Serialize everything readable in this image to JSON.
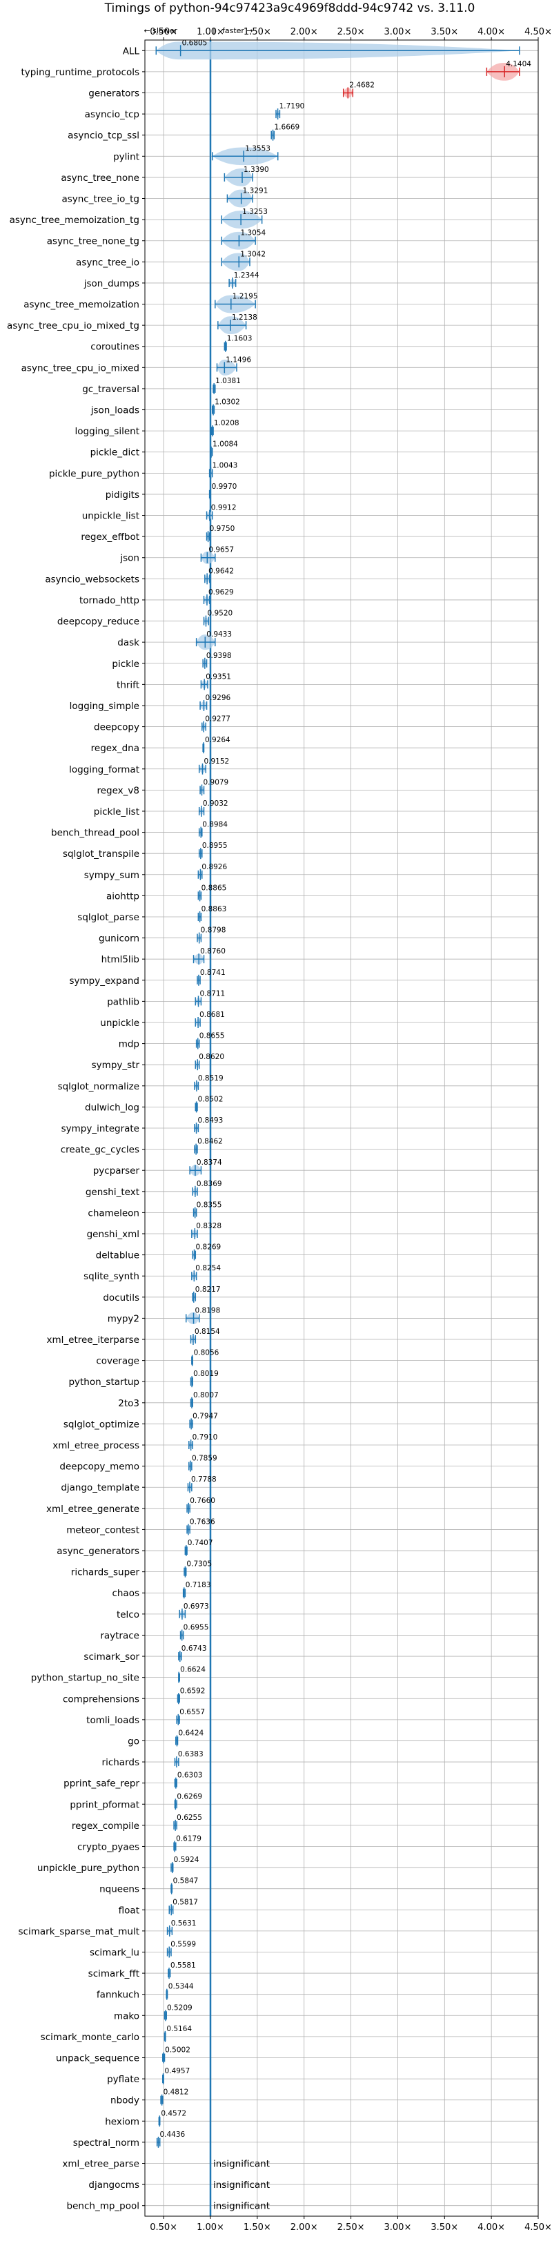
{
  "chart_data": {
    "type": "violin",
    "title": "Timings of python-94c97423a9c4969f8ddd-94c9742 vs. 3.11.0",
    "direction_labels": {
      "slower": "← slower",
      "separator": "|",
      "faster": "faster →"
    },
    "xlim": [
      0.3,
      4.5
    ],
    "xticks": [
      0.5,
      1.0,
      1.5,
      2.0,
      2.5,
      3.0,
      3.5,
      4.0,
      4.5
    ],
    "xtick_labels": [
      "0.50×",
      "1.00×",
      "1.50×",
      "2.00×",
      "2.50×",
      "3.00×",
      "3.50×",
      "4.00×",
      "4.50×"
    ],
    "grid": true,
    "reference_line": 1.0,
    "colors": {
      "faster": "#1f77b4",
      "slower": "#d62728",
      "faster_fill": "#aecde8",
      "slower_fill": "#f4a9a9",
      "grid": "#b0b0b0"
    },
    "insignificant_text": "insignificant",
    "benchmarks": [
      {
        "name": "ALL",
        "value": 0.6805,
        "label": "0.6805",
        "lo": 0.42,
        "hi": 4.3
      },
      {
        "name": "typing_runtime_protocols",
        "value": 4.1404,
        "label": "4.1404",
        "lo": 3.95,
        "hi": 4.3
      },
      {
        "name": "generators",
        "value": 2.4682,
        "label": "2.4682",
        "lo": 2.42,
        "hi": 2.52
      },
      {
        "name": "asyncio_tcp",
        "value": 1.719,
        "label": "1.7190",
        "lo": 1.7,
        "hi": 1.74
      },
      {
        "name": "asyncio_tcp_ssl",
        "value": 1.6669,
        "label": "1.6669",
        "lo": 1.65,
        "hi": 1.68
      },
      {
        "name": "pylint",
        "value": 1.3553,
        "label": "1.3553",
        "lo": 1.02,
        "hi": 1.72
      },
      {
        "name": "async_tree_none",
        "value": 1.339,
        "label": "1.3390",
        "lo": 1.15,
        "hi": 1.45
      },
      {
        "name": "async_tree_io_tg",
        "value": 1.3291,
        "label": "1.3291",
        "lo": 1.18,
        "hi": 1.45
      },
      {
        "name": "async_tree_memoization_tg",
        "value": 1.3253,
        "label": "1.3253",
        "lo": 1.12,
        "hi": 1.55
      },
      {
        "name": "async_tree_none_tg",
        "value": 1.3054,
        "label": "1.3054",
        "lo": 1.12,
        "hi": 1.48
      },
      {
        "name": "async_tree_io",
        "value": 1.3042,
        "label": "1.3042",
        "lo": 1.12,
        "hi": 1.42
      },
      {
        "name": "json_dumps",
        "value": 1.2344,
        "label": "1.2344",
        "lo": 1.2,
        "hi": 1.27
      },
      {
        "name": "async_tree_memoization",
        "value": 1.2195,
        "label": "1.2195",
        "lo": 1.05,
        "hi": 1.48
      },
      {
        "name": "async_tree_cpu_io_mixed_tg",
        "value": 1.2138,
        "label": "1.2138",
        "lo": 1.08,
        "hi": 1.38
      },
      {
        "name": "coroutines",
        "value": 1.1603,
        "label": "1.1603",
        "lo": 1.15,
        "hi": 1.17
      },
      {
        "name": "async_tree_cpu_io_mixed",
        "value": 1.1496,
        "label": "1.1496",
        "lo": 1.07,
        "hi": 1.28
      },
      {
        "name": "gc_traversal",
        "value": 1.0381,
        "label": "1.0381",
        "lo": 1.03,
        "hi": 1.05
      },
      {
        "name": "json_loads",
        "value": 1.0302,
        "label": "1.0302",
        "lo": 1.02,
        "hi": 1.04
      },
      {
        "name": "logging_silent",
        "value": 1.0208,
        "label": "1.0208",
        "lo": 1.01,
        "hi": 1.03
      },
      {
        "name": "pickle_dict",
        "value": 1.0084,
        "label": "1.0084",
        "lo": 1.0,
        "hi": 1.02
      },
      {
        "name": "pickle_pure_python",
        "value": 1.0043,
        "label": "1.0043",
        "lo": 0.99,
        "hi": 1.02
      },
      {
        "name": "pidigits",
        "value": 0.997,
        "label": "0.9970",
        "lo": 0.99,
        "hi": 1.0
      },
      {
        "name": "unpickle_list",
        "value": 0.9912,
        "label": "0.9912",
        "lo": 0.96,
        "hi": 1.02
      },
      {
        "name": "regex_effbot",
        "value": 0.975,
        "label": "0.9750",
        "lo": 0.96,
        "hi": 0.99
      },
      {
        "name": "json",
        "value": 0.9657,
        "label": "0.9657",
        "lo": 0.9,
        "hi": 1.05
      },
      {
        "name": "asyncio_websockets",
        "value": 0.9642,
        "label": "0.9642",
        "lo": 0.94,
        "hi": 0.99
      },
      {
        "name": "tornado_http",
        "value": 0.9629,
        "label": "0.9629",
        "lo": 0.93,
        "hi": 0.99
      },
      {
        "name": "deepcopy_reduce",
        "value": 0.952,
        "label": "0.9520",
        "lo": 0.93,
        "hi": 0.98
      },
      {
        "name": "dask",
        "value": 0.9433,
        "label": "0.9433",
        "lo": 0.85,
        "hi": 1.05
      },
      {
        "name": "pickle",
        "value": 0.9398,
        "label": "0.9398",
        "lo": 0.92,
        "hi": 0.96
      },
      {
        "name": "thrift",
        "value": 0.9351,
        "label": "0.9351",
        "lo": 0.9,
        "hi": 0.97
      },
      {
        "name": "logging_simple",
        "value": 0.9296,
        "label": "0.9296",
        "lo": 0.89,
        "hi": 0.96
      },
      {
        "name": "deepcopy",
        "value": 0.9277,
        "label": "0.9277",
        "lo": 0.91,
        "hi": 0.95
      },
      {
        "name": "regex_dna",
        "value": 0.9264,
        "label": "0.9264",
        "lo": 0.92,
        "hi": 0.93
      },
      {
        "name": "logging_format",
        "value": 0.9152,
        "label": "0.9152",
        "lo": 0.88,
        "hi": 0.95
      },
      {
        "name": "regex_v8",
        "value": 0.9079,
        "label": "0.9079",
        "lo": 0.89,
        "hi": 0.93
      },
      {
        "name": "pickle_list",
        "value": 0.9032,
        "label": "0.9032",
        "lo": 0.88,
        "hi": 0.93
      },
      {
        "name": "bench_thread_pool",
        "value": 0.8984,
        "label": "0.8984",
        "lo": 0.88,
        "hi": 0.91
      },
      {
        "name": "sqlglot_transpile",
        "value": 0.8955,
        "label": "0.8955",
        "lo": 0.88,
        "hi": 0.91
      },
      {
        "name": "sympy_sum",
        "value": 0.8926,
        "label": "0.8926",
        "lo": 0.87,
        "hi": 0.91
      },
      {
        "name": "aiohttp",
        "value": 0.8865,
        "label": "0.8865",
        "lo": 0.87,
        "hi": 0.9
      },
      {
        "name": "sqlglot_parse",
        "value": 0.8863,
        "label": "0.8863",
        "lo": 0.87,
        "hi": 0.9
      },
      {
        "name": "gunicorn",
        "value": 0.8798,
        "label": "0.8798",
        "lo": 0.86,
        "hi": 0.9
      },
      {
        "name": "html5lib",
        "value": 0.876,
        "label": "0.8760",
        "lo": 0.82,
        "hi": 0.93
      },
      {
        "name": "sympy_expand",
        "value": 0.8741,
        "label": "0.8741",
        "lo": 0.86,
        "hi": 0.89
      },
      {
        "name": "pathlib",
        "value": 0.8711,
        "label": "0.8711",
        "lo": 0.84,
        "hi": 0.9
      },
      {
        "name": "unpickle",
        "value": 0.8681,
        "label": "0.8681",
        "lo": 0.84,
        "hi": 0.89
      },
      {
        "name": "mdp",
        "value": 0.8655,
        "label": "0.8655",
        "lo": 0.85,
        "hi": 0.88
      },
      {
        "name": "sympy_str",
        "value": 0.862,
        "label": "0.8620",
        "lo": 0.84,
        "hi": 0.88
      },
      {
        "name": "sqlglot_normalize",
        "value": 0.8519,
        "label": "0.8519",
        "lo": 0.83,
        "hi": 0.87
      },
      {
        "name": "dulwich_log",
        "value": 0.8502,
        "label": "0.8502",
        "lo": 0.84,
        "hi": 0.86
      },
      {
        "name": "sympy_integrate",
        "value": 0.8493,
        "label": "0.8493",
        "lo": 0.83,
        "hi": 0.87
      },
      {
        "name": "create_gc_cycles",
        "value": 0.8462,
        "label": "0.8462",
        "lo": 0.83,
        "hi": 0.86
      },
      {
        "name": "pycparser",
        "value": 0.8374,
        "label": "0.8374",
        "lo": 0.78,
        "hi": 0.9
      },
      {
        "name": "genshi_text",
        "value": 0.8369,
        "label": "0.8369",
        "lo": 0.81,
        "hi": 0.86
      },
      {
        "name": "chameleon",
        "value": 0.8355,
        "label": "0.8355",
        "lo": 0.82,
        "hi": 0.85
      },
      {
        "name": "genshi_xml",
        "value": 0.8328,
        "label": "0.8328",
        "lo": 0.8,
        "hi": 0.86
      },
      {
        "name": "deltablue",
        "value": 0.8269,
        "label": "0.8269",
        "lo": 0.81,
        "hi": 0.84
      },
      {
        "name": "sqlite_synth",
        "value": 0.8254,
        "label": "0.8254",
        "lo": 0.8,
        "hi": 0.85
      },
      {
        "name": "docutils",
        "value": 0.8217,
        "label": "0.8217",
        "lo": 0.81,
        "hi": 0.84
      },
      {
        "name": "mypy2",
        "value": 0.8198,
        "label": "0.8198",
        "lo": 0.74,
        "hi": 0.88
      },
      {
        "name": "xml_etree_iterparse",
        "value": 0.8154,
        "label": "0.8154",
        "lo": 0.79,
        "hi": 0.84
      },
      {
        "name": "coverage",
        "value": 0.8056,
        "label": "0.8056",
        "lo": 0.8,
        "hi": 0.81
      },
      {
        "name": "python_startup",
        "value": 0.8019,
        "label": "0.8019",
        "lo": 0.79,
        "hi": 0.81
      },
      {
        "name": "2to3",
        "value": 0.8007,
        "label": "0.8007",
        "lo": 0.79,
        "hi": 0.81
      },
      {
        "name": "sqlglot_optimize",
        "value": 0.7947,
        "label": "0.7947",
        "lo": 0.78,
        "hi": 0.81
      },
      {
        "name": "xml_etree_process",
        "value": 0.791,
        "label": "0.7910",
        "lo": 0.77,
        "hi": 0.81
      },
      {
        "name": "deepcopy_memo",
        "value": 0.7859,
        "label": "0.7859",
        "lo": 0.77,
        "hi": 0.8
      },
      {
        "name": "django_template",
        "value": 0.7788,
        "label": "0.7788",
        "lo": 0.76,
        "hi": 0.8
      },
      {
        "name": "xml_etree_generate",
        "value": 0.766,
        "label": "0.7660",
        "lo": 0.75,
        "hi": 0.78
      },
      {
        "name": "meteor_contest",
        "value": 0.7636,
        "label": "0.7636",
        "lo": 0.75,
        "hi": 0.78
      },
      {
        "name": "async_generators",
        "value": 0.7407,
        "label": "0.7407",
        "lo": 0.73,
        "hi": 0.75
      },
      {
        "name": "richards_super",
        "value": 0.7305,
        "label": "0.7305",
        "lo": 0.72,
        "hi": 0.74
      },
      {
        "name": "chaos",
        "value": 0.7183,
        "label": "0.7183",
        "lo": 0.71,
        "hi": 0.73
      },
      {
        "name": "telco",
        "value": 0.6973,
        "label": "0.6973",
        "lo": 0.67,
        "hi": 0.73
      },
      {
        "name": "raytrace",
        "value": 0.6955,
        "label": "0.6955",
        "lo": 0.68,
        "hi": 0.71
      },
      {
        "name": "scimark_sor",
        "value": 0.6743,
        "label": "0.6743",
        "lo": 0.66,
        "hi": 0.69
      },
      {
        "name": "python_startup_no_site",
        "value": 0.6624,
        "label": "0.6624",
        "lo": 0.66,
        "hi": 0.67
      },
      {
        "name": "comprehensions",
        "value": 0.6592,
        "label": "0.6592",
        "lo": 0.65,
        "hi": 0.67
      },
      {
        "name": "tomli_loads",
        "value": 0.6557,
        "label": "0.6557",
        "lo": 0.64,
        "hi": 0.67
      },
      {
        "name": "go",
        "value": 0.6424,
        "label": "0.6424",
        "lo": 0.63,
        "hi": 0.65
      },
      {
        "name": "richards",
        "value": 0.6383,
        "label": "0.6383",
        "lo": 0.62,
        "hi": 0.66
      },
      {
        "name": "pprint_safe_repr",
        "value": 0.6303,
        "label": "0.6303",
        "lo": 0.62,
        "hi": 0.64
      },
      {
        "name": "pprint_pformat",
        "value": 0.6269,
        "label": "0.6269",
        "lo": 0.62,
        "hi": 0.64
      },
      {
        "name": "regex_compile",
        "value": 0.6255,
        "label": "0.6255",
        "lo": 0.61,
        "hi": 0.64
      },
      {
        "name": "crypto_pyaes",
        "value": 0.6179,
        "label": "0.6179",
        "lo": 0.61,
        "hi": 0.63
      },
      {
        "name": "unpickle_pure_python",
        "value": 0.5924,
        "label": "0.5924",
        "lo": 0.58,
        "hi": 0.6
      },
      {
        "name": "nqueens",
        "value": 0.5847,
        "label": "0.5847",
        "lo": 0.58,
        "hi": 0.59
      },
      {
        "name": "float",
        "value": 0.5817,
        "label": "0.5817",
        "lo": 0.56,
        "hi": 0.6
      },
      {
        "name": "scimark_sparse_mat_mult",
        "value": 0.5631,
        "label": "0.5631",
        "lo": 0.54,
        "hi": 0.59
      },
      {
        "name": "scimark_lu",
        "value": 0.5599,
        "label": "0.5599",
        "lo": 0.54,
        "hi": 0.58
      },
      {
        "name": "scimark_fft",
        "value": 0.5581,
        "label": "0.5581",
        "lo": 0.55,
        "hi": 0.57
      },
      {
        "name": "fannkuch",
        "value": 0.5344,
        "label": "0.5344",
        "lo": 0.53,
        "hi": 0.54
      },
      {
        "name": "mako",
        "value": 0.5209,
        "label": "0.5209",
        "lo": 0.51,
        "hi": 0.53
      },
      {
        "name": "scimark_monte_carlo",
        "value": 0.5164,
        "label": "0.5164",
        "lo": 0.51,
        "hi": 0.52
      },
      {
        "name": "unpack_sequence",
        "value": 0.5002,
        "label": "0.5002",
        "lo": 0.49,
        "hi": 0.51
      },
      {
        "name": "pyflate",
        "value": 0.4957,
        "label": "0.4957",
        "lo": 0.49,
        "hi": 0.5
      },
      {
        "name": "nbody",
        "value": 0.4812,
        "label": "0.4812",
        "lo": 0.47,
        "hi": 0.49
      },
      {
        "name": "hexiom",
        "value": 0.4572,
        "label": "0.4572",
        "lo": 0.45,
        "hi": 0.46
      },
      {
        "name": "spectral_norm",
        "value": 0.4436,
        "label": "0.4436",
        "lo": 0.43,
        "hi": 0.46
      },
      {
        "name": "xml_etree_parse",
        "value": null,
        "label": "insignificant"
      },
      {
        "name": "djangocms",
        "value": null,
        "label": "insignificant"
      },
      {
        "name": "bench_mp_pool",
        "value": null,
        "label": "insignificant"
      }
    ]
  }
}
